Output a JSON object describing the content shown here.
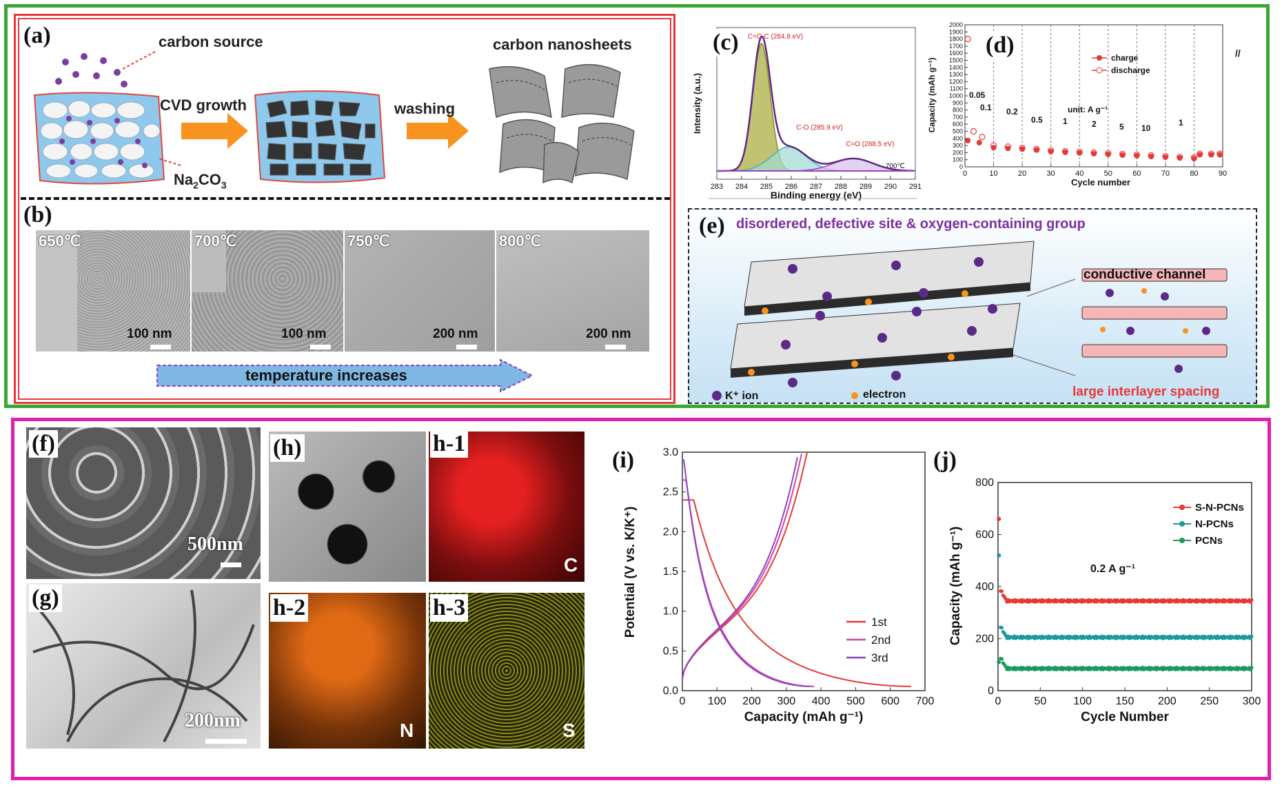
{
  "panels": {
    "a": {
      "label": "(a)",
      "carbon_source": "carbon source",
      "cvd_growth": "CVD growth",
      "washing": "washing",
      "carbon_nanosheets": "carbon nanosheets",
      "na2co3": "Na",
      "na2co3_sub": "2",
      "na2co3_tail": "CO",
      "na2co3_sub2": "3"
    },
    "b": {
      "label": "(b)",
      "temps": [
        "650℃",
        "700℃",
        "750℃",
        "800℃"
      ],
      "scales": [
        "100 nm",
        "100 nm",
        "200 nm",
        "200 nm"
      ],
      "arrow_text": "temperature increases"
    },
    "c": {
      "label": "(c)"
    },
    "d": {
      "label": "(d)"
    },
    "e": {
      "label": "(e)",
      "top_text": "disordered, defective site & oxygen-containing group",
      "conductive": "conductive channel",
      "interlayer": "large interlayer spacing",
      "k_ion": "K⁺ ion",
      "electron": "electron"
    },
    "f": {
      "label": "(f)",
      "scale": "500nm"
    },
    "g": {
      "label": "(g)",
      "scale": "200nm"
    },
    "h": {
      "label": "(h)",
      "h1": "h-1",
      "h2": "h-2",
      "h3": "h-3",
      "C": "C",
      "N": "N",
      "S": "S"
    },
    "i": {
      "label": "(i)"
    },
    "j": {
      "label": "(j)"
    }
  },
  "colors": {
    "green_frame": "#3aa635",
    "red_frame": "#e53935",
    "magenta_frame": "#e020b0",
    "orange_arrow": "#f7931e"
  },
  "chart_data": [
    {
      "id": "c",
      "type": "line",
      "xlabel": "Binding energy (eV)",
      "ylabel": "Intensity (a.u.)",
      "xlim": [
        283,
        291
      ],
      "xticks": [
        "283",
        "284",
        "285",
        "286",
        "287",
        "288",
        "289",
        "290",
        "291"
      ],
      "peaks": [
        {
          "name": "C=C-C (284.8 eV)",
          "center": 284.8,
          "color": "#8a8a20"
        },
        {
          "name": "C-O (285.9 eV)",
          "center": 285.9,
          "color": "#3fb6b0"
        },
        {
          "name": "C=O (288.5 eV)",
          "center": 288.5,
          "color": "#9c3fc4"
        }
      ],
      "annotation": "700℃"
    },
    {
      "id": "d",
      "type": "scatter",
      "xlabel": "Cycle number",
      "ylabel": "Capacity (mAh g⁻¹)",
      "xlim": [
        0,
        90
      ],
      "ylim": [
        0,
        2000
      ],
      "xticks": [
        "0",
        "10",
        "20",
        "30",
        "40",
        "50",
        "60",
        "70",
        "80",
        "90"
      ],
      "yticks": [
        "0",
        "100",
        "200",
        "300",
        "400",
        "500",
        "600",
        "700",
        "800",
        "900",
        "1000",
        "1100",
        "1200",
        "1300",
        "1400",
        "1500",
        "1600",
        "1700",
        "1800",
        "1900",
        "2000"
      ],
      "legend": [
        "charge",
        "discharge"
      ],
      "unit_note": "unit: A g⁻¹",
      "rates": [
        "0.05",
        "0.1",
        "0.2",
        "0.5",
        "1",
        "2",
        "5",
        "10",
        "1"
      ],
      "charge": [
        [
          1,
          370
        ],
        [
          5,
          340
        ],
        [
          10,
          270
        ],
        [
          15,
          260
        ],
        [
          20,
          250
        ],
        [
          25,
          235
        ],
        [
          30,
          215
        ],
        [
          35,
          205
        ],
        [
          40,
          195
        ],
        [
          45,
          185
        ],
        [
          50,
          175
        ],
        [
          55,
          165
        ],
        [
          60,
          155
        ],
        [
          65,
          145
        ],
        [
          70,
          135
        ],
        [
          75,
          125
        ],
        [
          80,
          115
        ],
        [
          82,
          170
        ],
        [
          86,
          170
        ],
        [
          89,
          170
        ]
      ],
      "discharge": [
        [
          1,
          1800
        ],
        [
          3,
          500
        ],
        [
          6,
          420
        ],
        [
          10,
          300
        ],
        [
          15,
          285
        ],
        [
          20,
          265
        ],
        [
          25,
          250
        ],
        [
          30,
          230
        ],
        [
          35,
          220
        ],
        [
          40,
          210
        ],
        [
          45,
          200
        ],
        [
          50,
          190
        ],
        [
          55,
          180
        ],
        [
          60,
          170
        ],
        [
          65,
          160
        ],
        [
          70,
          150
        ],
        [
          75,
          140
        ],
        [
          80,
          130
        ],
        [
          82,
          185
        ],
        [
          86,
          185
        ],
        [
          89,
          185
        ]
      ]
    },
    {
      "id": "i",
      "type": "line",
      "xlabel": "Capacity (mAh g⁻¹)",
      "ylabel": "Potential (V vs. K/K⁺)",
      "xlim": [
        0,
        700
      ],
      "ylim": [
        0,
        3
      ],
      "xticks": [
        "0",
        "100",
        "200",
        "300",
        "400",
        "500",
        "600",
        "700"
      ],
      "yticks": [
        "0.0",
        "0.5",
        "1.0",
        "1.5",
        "2.0",
        "2.5",
        "3.0"
      ],
      "series": [
        {
          "name": "1st",
          "color": "#e53935"
        },
        {
          "name": "2nd",
          "color": "#d63fa6"
        },
        {
          "name": "3rd",
          "color": "#8e44c0"
        }
      ],
      "discharge_end": [
        660,
        380,
        370
      ],
      "charge_end": [
        360,
        345,
        335
      ]
    },
    {
      "id": "j",
      "type": "scatter",
      "xlabel": "Cycle Number",
      "ylabel": "Capacity (mAh g⁻¹)",
      "xlim": [
        0,
        300
      ],
      "ylim": [
        0,
        800
      ],
      "xticks": [
        "0",
        "50",
        "100",
        "150",
        "200",
        "250",
        "300"
      ],
      "yticks": [
        "0",
        "200",
        "400",
        "600",
        "800"
      ],
      "annotation": "0.2 A g⁻¹",
      "series": [
        {
          "name": "S-N-PCNs",
          "color": "#e53935",
          "first": 660,
          "steady": 345
        },
        {
          "name": "N-PCNs",
          "color": "#1a9aa0",
          "first": 520,
          "steady": 205
        },
        {
          "name": "PCNs",
          "color": "#1a9a5a",
          "first": 110,
          "steady": 85
        }
      ]
    }
  ]
}
